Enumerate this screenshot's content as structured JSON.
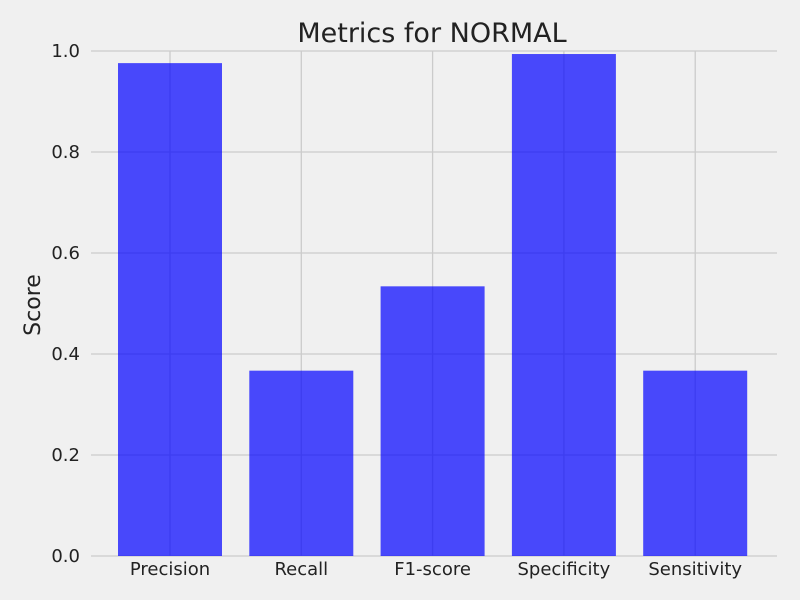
{
  "chart_data": {
    "type": "bar",
    "title": "Metrics for NORMAL",
    "xlabel": "",
    "ylabel": "Score",
    "categories": [
      "Precision",
      "Recall",
      "F1-score",
      "Specificity",
      "Sensitivity"
    ],
    "values": [
      0.976,
      0.367,
      0.534,
      0.994,
      0.367
    ],
    "ylim": [
      0.0,
      1.0
    ],
    "yticks": [
      "0.0",
      "0.2",
      "0.4",
      "0.6",
      "0.8",
      "1.0"
    ],
    "grid": true,
    "bar_color": "#0000ff",
    "bar_opacity": 0.7,
    "background": "#f0f0f0"
  }
}
